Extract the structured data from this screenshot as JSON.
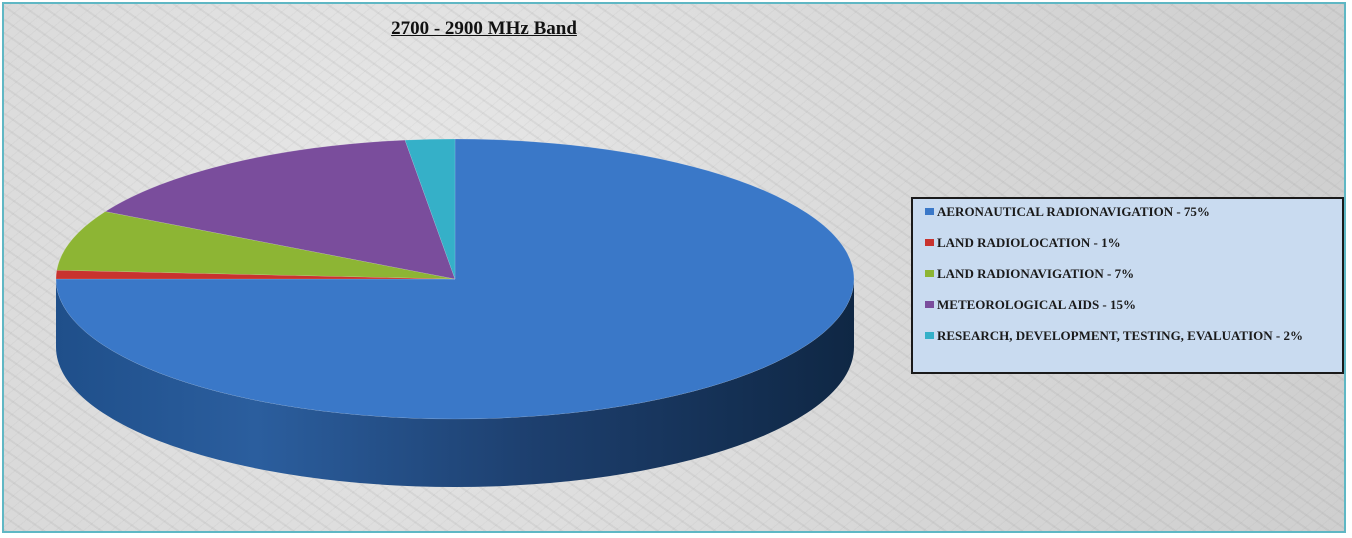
{
  "chart_data": {
    "type": "pie",
    "title": "2700 - 2900 MHz Band",
    "legend_position": "right",
    "three_d": true,
    "slices": [
      {
        "label": "AERONAUTICAL RADIONAVIGATION - 75%",
        "value": 75,
        "color": "#3a78c8"
      },
      {
        "label": "LAND RADIOLOCATION - 1%",
        "value": 1,
        "color": "#c8332f"
      },
      {
        "label": "LAND RADIONAVIGATION - 7%",
        "value": 7,
        "color": "#8db534"
      },
      {
        "label": "METEOROLOGICAL AIDS - 15%",
        "value": 15,
        "color": "#7a4d9c"
      },
      {
        "label": "RESEARCH, DEVELOPMENT, TESTING, EVALUATION - 2%",
        "value": 2,
        "color": "#35b0c8"
      }
    ]
  }
}
